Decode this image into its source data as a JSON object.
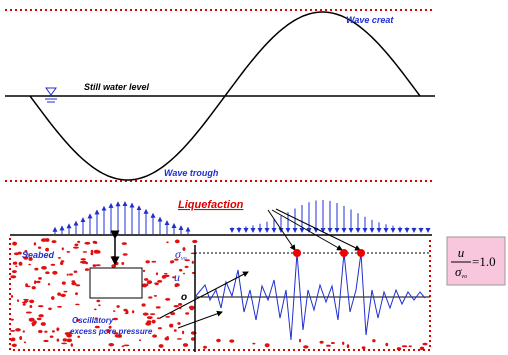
{
  "labels": {
    "wave_crest": "Wave creat",
    "still_water_level": "Still water level",
    "wave_trough": "Wave trough",
    "liquefaction": "Liquefaction",
    "seabed": "Seabed",
    "oscillatory": "Oscillatory",
    "excess_pore_pressure": "excess pore pressure"
  },
  "plot": {
    "sigma": "σ",
    "sigma_sub": "vo",
    "u": "u",
    "zero": "o"
  },
  "formula": {
    "numerator": "u",
    "denominator": "σ",
    "denominator_sub": "vo",
    "equals": "=1.0"
  }
}
